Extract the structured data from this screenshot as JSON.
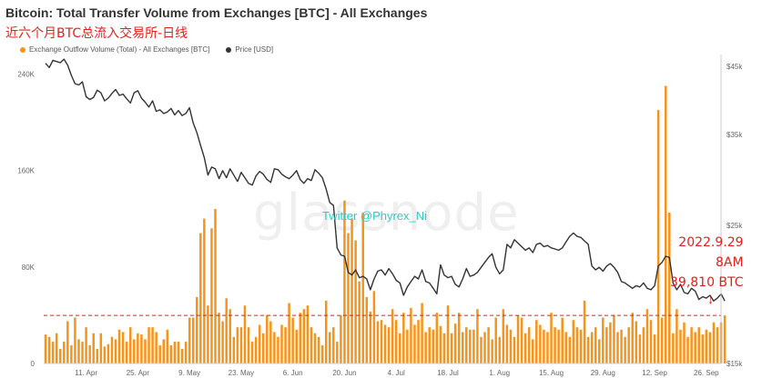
{
  "title": "Bitcoin: Total Transfer Volume from Exchanges [BTC] - All Exchanges",
  "subtitle": "近六个月BTC总流入交易所-日线",
  "watermark": "glassnode",
  "twitter": "Twitter @Phyrex_Ni",
  "annotation": {
    "date": "2022.9.29",
    "time": "8AM",
    "value": "39,810 BTC",
    "arrow": "↓"
  },
  "colors": {
    "bar": "#f7931a",
    "price": "#333333",
    "refline": "#e0221a",
    "annotation": "#e0221a"
  },
  "chart_data": {
    "type": "bar",
    "series": [
      {
        "name": "Exchange Outflow Volume (Total) - All Exchanges [BTC]",
        "type": "bar",
        "axis": "left"
      },
      {
        "name": "Price [USD]",
        "type": "line",
        "axis": "right"
      }
    ],
    "x_ticks": [
      "11. Apr",
      "25. Apr",
      "9. May",
      "23. May",
      "6. Jun",
      "20. Jun",
      "4. Jul",
      "18. Jul",
      "1. Aug",
      "15. Aug",
      "29. Aug",
      "12. Sep",
      "26. Sep"
    ],
    "x_start": "2022-03-31",
    "x_end": "2022-09-29",
    "y_left": {
      "ticks": [
        "0",
        "80K",
        "160K",
        "240K"
      ],
      "range": [
        0,
        256000
      ]
    },
    "y_right": {
      "ticks": [
        "$15k",
        "$25k",
        "$35k",
        "$45k"
      ],
      "range": [
        15000,
        47000
      ],
      "scale": "log"
    },
    "reference_line": 39810,
    "grid": false,
    "legend_position": "top-left",
    "outflow": [
      24000,
      22000,
      18000,
      25000,
      12000,
      18000,
      35000,
      15000,
      38000,
      20000,
      18000,
      30000,
      15000,
      25000,
      12000,
      25000,
      14000,
      16000,
      22000,
      20000,
      28000,
      26000,
      18000,
      30000,
      20000,
      25000,
      24000,
      20000,
      30000,
      30000,
      26000,
      15000,
      20000,
      28000,
      15000,
      18000,
      18000,
      12000,
      18000,
      38000,
      38000,
      55000,
      108000,
      120000,
      48000,
      112000,
      128000,
      42000,
      35000,
      54000,
      45000,
      22000,
      30000,
      30000,
      48000,
      30000,
      18000,
      22000,
      32000,
      25000,
      40000,
      35000,
      26000,
      22000,
      32000,
      30000,
      50000,
      38000,
      28000,
      42000,
      45000,
      48000,
      30000,
      25000,
      22000,
      15000,
      52000,
      26000,
      30000,
      18000,
      40000,
      135000,
      108000,
      120000,
      102000,
      68000,
      125000,
      55000,
      43000,
      60000,
      35000,
      36000,
      32000,
      30000,
      45000,
      36000,
      25000,
      42000,
      28000,
      46000,
      32000,
      36000,
      50000,
      26000,
      30000,
      28000,
      42000,
      31000,
      25000,
      48000,
      25000,
      33000,
      42000,
      26000,
      30000,
      28000,
      28000,
      45000,
      22000,
      26000,
      30000,
      20000,
      38000,
      22000,
      45000,
      32000,
      28000,
      22000,
      40000,
      38000,
      25000,
      30000,
      20000,
      36000,
      32000,
      28000,
      26000,
      42000,
      30000,
      28000,
      38000,
      26000,
      22000,
      36000,
      30000,
      28000,
      52000,
      22000,
      26000,
      30000,
      20000,
      38000,
      30000,
      34000,
      40000,
      26000,
      28000,
      22000,
      30000,
      42000,
      35000,
      24000,
      30000,
      45000,
      36000,
      24000,
      210000,
      38000,
      230000,
      125000,
      25000,
      45000,
      28000,
      34000,
      22000,
      30000,
      26000,
      30000,
      24000,
      28000,
      26000,
      34000,
      30000,
      34000,
      39810
    ],
    "price": [
      45500,
      44800,
      46000,
      45800,
      45600,
      46200,
      45200,
      43500,
      42200,
      42000,
      42500,
      40200,
      39800,
      40100,
      41200,
      40800,
      39600,
      40000,
      40700,
      41300,
      40400,
      40600,
      39900,
      39300,
      40800,
      41100,
      40000,
      39400,
      38700,
      39600,
      38100,
      38300,
      37800,
      38000,
      38500,
      37600,
      38200,
      37500,
      37800,
      38600,
      36500,
      35200,
      33600,
      32100,
      30100,
      31000,
      30800,
      29700,
      30600,
      29800,
      30800,
      30100,
      29400,
      30400,
      29800,
      29200,
      29000,
      30000,
      30500,
      30200,
      29600,
      29300,
      30800,
      30700,
      30200,
      29900,
      29700,
      30100,
      30600,
      29600,
      29200,
      29700,
      29500,
      30700,
      30300,
      29800,
      28600,
      27200,
      26900,
      23000,
      22400,
      22300,
      21000,
      20800,
      21200,
      20600,
      20700,
      20500,
      19700,
      20500,
      21100,
      21200,
      20800,
      21300,
      20900,
      20400,
      20200,
      19300,
      19900,
      20300,
      20700,
      20500,
      21200,
      20300,
      20200,
      19800,
      19400,
      21600,
      20800,
      20600,
      20700,
      20100,
      19900,
      20500,
      21300,
      20700,
      20800,
      21000,
      21400,
      21800,
      22200,
      22500,
      21400,
      20900,
      21200,
      23300,
      23000,
      23700,
      23400,
      23100,
      22800,
      23000,
      22600,
      23300,
      23400,
      23100,
      23200,
      23000,
      22900,
      22800,
      23000,
      23500,
      24000,
      24300,
      24000,
      23900,
      23600,
      23300,
      21500,
      21200,
      21400,
      21100,
      21500,
      21700,
      21400,
      21000,
      20300,
      20200,
      20000,
      19800,
      20000,
      19900,
      20200,
      19800,
      19700,
      20000,
      21500,
      21800,
      22300,
      22200,
      20200,
      19700,
      20100,
      19500,
      19400,
      19800,
      19600,
      19000,
      19200,
      19100,
      19300,
      18900,
      19100,
      19400,
      18900
    ]
  }
}
